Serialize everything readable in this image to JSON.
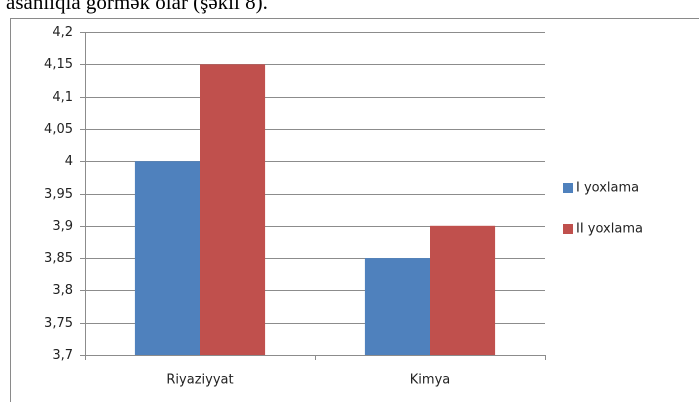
{
  "text_above": "asanlıqla görmək olar (şəkil 8).",
  "chart_data": {
    "type": "bar",
    "categories": [
      "Riyaziyyat",
      "Kimya"
    ],
    "series": [
      {
        "name": "I yoxlama",
        "color": "#4f81bd",
        "values": [
          4.0,
          3.85
        ]
      },
      {
        "name": "II yoxlama",
        "color": "#c0504d",
        "values": [
          4.15,
          3.9
        ]
      }
    ],
    "ylim": [
      3.7,
      4.2
    ],
    "yticks": [
      {
        "value": 3.7,
        "label": "3,7"
      },
      {
        "value": 3.75,
        "label": "3,75"
      },
      {
        "value": 3.8,
        "label": "3,8"
      },
      {
        "value": 3.85,
        "label": "3,85"
      },
      {
        "value": 3.9,
        "label": "3,9"
      },
      {
        "value": 3.95,
        "label": "3,95"
      },
      4,
      {
        "value": 4.05,
        "label": "4,05"
      },
      {
        "value": 4.1,
        "label": "4,1"
      },
      {
        "value": 4.15,
        "label": "4,15"
      },
      {
        "value": 4.2,
        "label": "4,2"
      }
    ],
    "grid": true,
    "legend": "right"
  }
}
